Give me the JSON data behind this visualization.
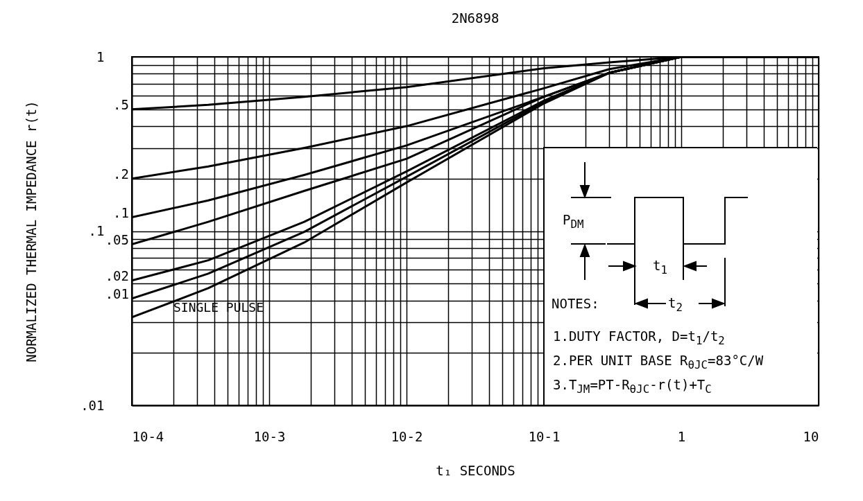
{
  "chart_data": {
    "type": "line",
    "title": "2N6898",
    "xlabel": "t₁ SECONDS",
    "ylabel": "NORMALIZED THERMAL IMPEDANCE r(t)",
    "log": "xy",
    "grid": true,
    "marker": "none",
    "line_style": "solid",
    "xlim": [
      0.0001,
      10
    ],
    "ylim": [
      0.01,
      1
    ],
    "xticks": [
      {
        "value": 0.0001,
        "label": "10-4"
      },
      {
        "value": 0.0002,
        "label": null
      },
      {
        "value": 0.0003,
        "label": null
      },
      {
        "value": 0.0004,
        "label": null
      },
      {
        "value": 0.0005,
        "label": null
      },
      {
        "value": 0.0006,
        "label": null
      },
      {
        "value": 0.0007,
        "label": null
      },
      {
        "value": 0.0008,
        "label": null
      },
      {
        "value": 0.0009,
        "label": null
      },
      {
        "value": 0.001,
        "label": "10-3"
      },
      {
        "value": 0.002,
        "label": null
      },
      {
        "value": 0.003,
        "label": null
      },
      {
        "value": 0.004,
        "label": null
      },
      {
        "value": 0.005,
        "label": null
      },
      {
        "value": 0.006,
        "label": null
      },
      {
        "value": 0.007,
        "label": null
      },
      {
        "value": 0.008,
        "label": null
      },
      {
        "value": 0.009,
        "label": null
      },
      {
        "value": 0.01,
        "label": "10-2"
      },
      {
        "value": 0.02,
        "label": null
      },
      {
        "value": 0.03,
        "label": null
      },
      {
        "value": 0.04,
        "label": null
      },
      {
        "value": 0.05,
        "label": null
      },
      {
        "value": 0.06,
        "label": null
      },
      {
        "value": 0.07,
        "label": null
      },
      {
        "value": 0.08,
        "label": null
      },
      {
        "value": 0.09,
        "label": null
      },
      {
        "value": 0.1,
        "label": "10-1"
      },
      {
        "value": 0.2,
        "label": null
      },
      {
        "value": 0.3,
        "label": null
      },
      {
        "value": 0.4,
        "label": null
      },
      {
        "value": 0.5,
        "label": null
      },
      {
        "value": 0.6,
        "label": null
      },
      {
        "value": 0.7,
        "label": null
      },
      {
        "value": 0.8,
        "label": null
      },
      {
        "value": 0.9,
        "label": null
      },
      1,
      {
        "value": 2,
        "label": null
      },
      {
        "value": 3,
        "label": null
      },
      {
        "value": 4,
        "label": null
      },
      {
        "value": 5,
        "label": null
      },
      {
        "value": 6,
        "label": null
      },
      {
        "value": 7,
        "label": null
      },
      {
        "value": 8,
        "label": null
      },
      {
        "value": 9,
        "label": null
      },
      10
    ],
    "yticks": [
      {
        "value": 0.01,
        "label": ".01"
      },
      {
        "value": 0.02,
        "label": null
      },
      {
        "value": 0.03,
        "label": null
      },
      {
        "value": 0.04,
        "label": null
      },
      {
        "value": 0.05,
        "label": null
      },
      {
        "value": 0.06,
        "label": null
      },
      {
        "value": 0.07,
        "label": null
      },
      {
        "value": 0.08,
        "label": null
      },
      {
        "value": 0.09,
        "label": null
      },
      {
        "value": 0.1,
        "label": ".1"
      },
      {
        "value": 0.2,
        "label": null
      },
      {
        "value": 0.3,
        "label": null
      },
      {
        "value": 0.4,
        "label": null
      },
      {
        "value": 0.5,
        "label": null
      },
      {
        "value": 0.6,
        "label": null
      },
      {
        "value": 0.7,
        "label": null
      },
      {
        "value": 0.8,
        "label": null
      },
      {
        "value": 0.9,
        "label": null
      },
      1
    ],
    "x": [
      0.0001,
      0.00036,
      0.0018,
      0.01,
      0.1,
      0.3,
      1,
      10
    ],
    "series": [
      {
        "name": ".5",
        "color": "#000000",
        "values": [
          0.5,
          0.53,
          0.59,
          0.67,
          0.86,
          0.93,
          1,
          1
        ]
      },
      {
        "name": ".2",
        "color": "#000000",
        "values": [
          0.2,
          0.235,
          0.3,
          0.4,
          0.66,
          0.85,
          1,
          1
        ]
      },
      {
        "name": ".1",
        "color": "#000000",
        "values": [
          0.12,
          0.15,
          0.21,
          0.31,
          0.59,
          0.81,
          1,
          1
        ]
      },
      {
        "name": ".05",
        "color": "#000000",
        "values": [
          0.084,
          0.113,
          0.17,
          0.26,
          0.59,
          0.81,
          1,
          1
        ]
      },
      {
        "name": ".02",
        "color": "#000000",
        "values": [
          0.052,
          0.068,
          0.113,
          0.22,
          0.56,
          0.81,
          1,
          1
        ]
      },
      {
        "name": ".01",
        "color": "#000000",
        "values": [
          0.041,
          0.057,
          0.099,
          0.205,
          0.55,
          0.81,
          1,
          1
        ]
      },
      {
        "name": "SINGLE PULSE",
        "color": "#000000",
        "values": [
          0.032,
          0.047,
          0.086,
          0.19,
          0.54,
          0.81,
          1,
          1
        ]
      }
    ],
    "annotations": [
      "P$_{DM}$",
      "t$_{1}$",
      "t$_{2}$",
      "NOTES:",
      "1.DUTY FACTOR, D=t$_{1}$/t$_{2}$",
      "2.PER UNIT BASE R$_{θJC}$=83°C/W",
      "3.T$_{JM}$=PT-R$_{θJC}$-r(t)+T$_{C}$"
    ]
  }
}
